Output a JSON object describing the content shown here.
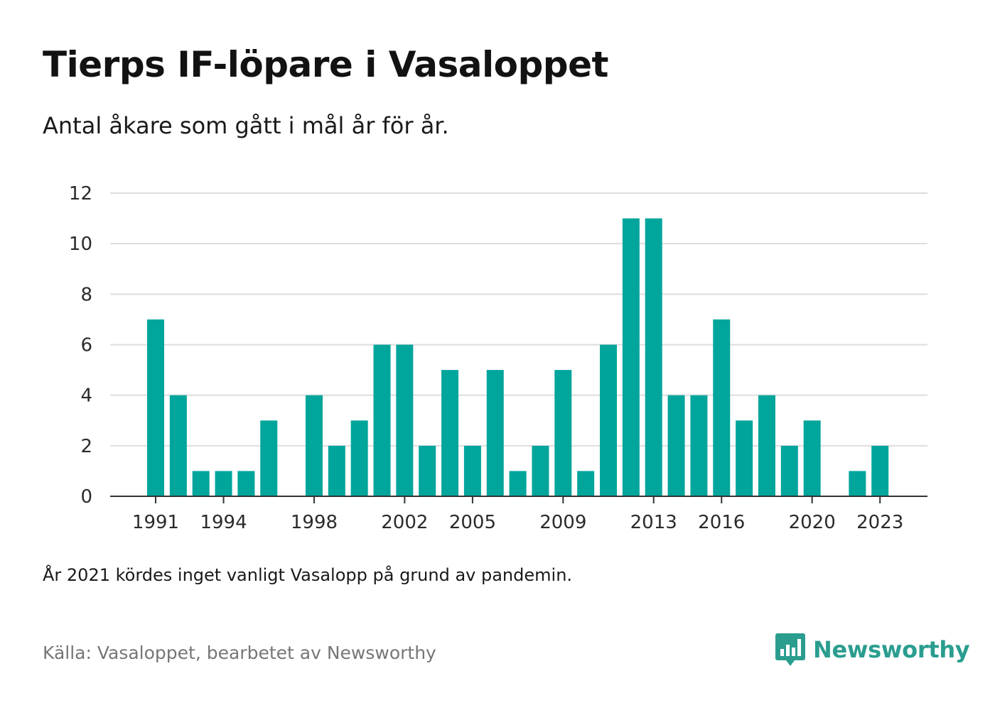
{
  "title": "Tierps IF-löpare i Vasaloppet",
  "subtitle": "Antal åkare som gått i mål år för år.",
  "note": "År 2021 kördes inget vanligt Vasalopp på grund av pandemin.",
  "source": "Källa: Vasaloppet, bearbetet av Newsworthy",
  "brand": {
    "name": "Newsworthy",
    "icon": "newsworthy-logo-icon"
  },
  "colors": {
    "bar": "#00a59b",
    "grid": "#dddddd",
    "axis": "#333333",
    "brand": "#2a9d8f"
  },
  "chart_data": {
    "type": "bar",
    "categories": [
      1991,
      1992,
      1993,
      1994,
      1995,
      1996,
      1997,
      1998,
      1999,
      2000,
      2001,
      2002,
      2003,
      2004,
      2005,
      2006,
      2007,
      2008,
      2009,
      2010,
      2011,
      2012,
      2013,
      2014,
      2015,
      2016,
      2017,
      2018,
      2019,
      2020,
      2021,
      2022,
      2023
    ],
    "values": [
      7,
      4,
      1,
      1,
      1,
      3,
      0,
      4,
      2,
      3,
      6,
      6,
      2,
      5,
      2,
      5,
      1,
      2,
      5,
      1,
      6,
      11,
      11,
      4,
      4,
      7,
      3,
      4,
      2,
      3,
      0,
      1,
      2
    ],
    "x_tick_labels": [
      "1991",
      "1994",
      "1998",
      "2002",
      "2005",
      "2009",
      "2013",
      "2016",
      "2020",
      "2023"
    ],
    "y_ticks": [
      0,
      2,
      4,
      6,
      8,
      10,
      12
    ],
    "ylim": [
      0,
      12
    ],
    "xlabel": "",
    "ylabel": "",
    "grid": true,
    "legend": "none"
  }
}
